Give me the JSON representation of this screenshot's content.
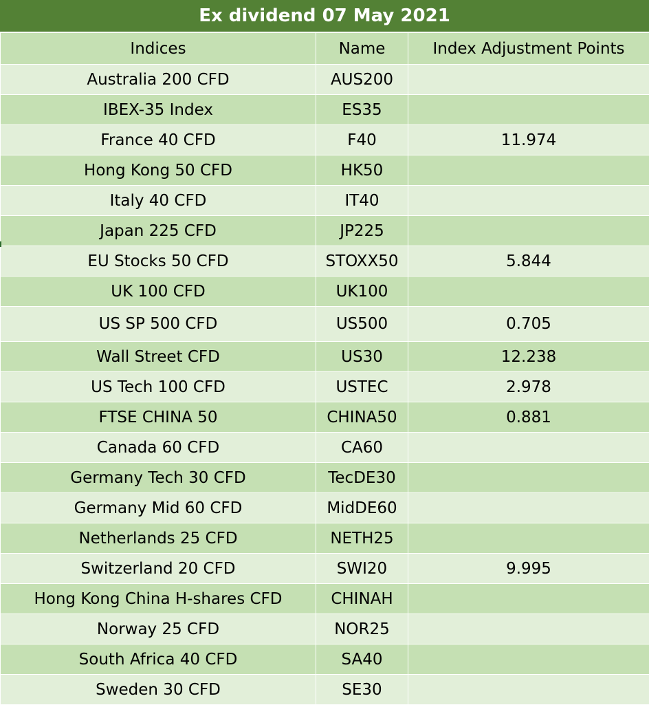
{
  "title": "Ex dividend 07 May 2021",
  "headers": {
    "indices": "Indices",
    "name": "Name",
    "points": "Index Adjustment Points"
  },
  "rows": [
    {
      "index": "Australia 200 CFD",
      "name": "AUS200",
      "points": ""
    },
    {
      "index": "IBEX-35 Index",
      "name": "ES35",
      "points": ""
    },
    {
      "index": "France 40 CFD",
      "name": "F40",
      "points": "11.974"
    },
    {
      "index": "Hong Kong 50 CFD",
      "name": "HK50",
      "points": ""
    },
    {
      "index": "Italy 40 CFD",
      "name": "IT40",
      "points": ""
    },
    {
      "index": "Japan 225 CFD",
      "name": "JP225",
      "points": ""
    },
    {
      "index": "EU Stocks 50 CFD",
      "name": "STOXX50",
      "points": "5.844"
    },
    {
      "index": "UK 100 CFD",
      "name": "UK100",
      "points": ""
    },
    {
      "index": "US SP 500 CFD",
      "name": "US500",
      "points": "0.705"
    },
    {
      "index": "Wall Street CFD",
      "name": "US30",
      "points": "12.238"
    },
    {
      "index": "US Tech 100 CFD",
      "name": "USTEC",
      "points": "2.978"
    },
    {
      "index": "FTSE CHINA 50",
      "name": "CHINA50",
      "points": "0.881"
    },
    {
      "index": "Canada 60 CFD",
      "name": "CA60",
      "points": ""
    },
    {
      "index": "Germany Tech 30 CFD",
      "name": "TecDE30",
      "points": ""
    },
    {
      "index": "Germany Mid 60 CFD",
      "name": "MidDE60",
      "points": ""
    },
    {
      "index": "Netherlands 25 CFD",
      "name": "NETH25",
      "points": ""
    },
    {
      "index": "Switzerland 20 CFD",
      "name": "SWI20",
      "points": "9.995"
    },
    {
      "index": "Hong Kong China H-shares CFD",
      "name": "CHINAH",
      "points": ""
    },
    {
      "index": "Norway 25 CFD",
      "name": "NOR25",
      "points": ""
    },
    {
      "index": "South Africa 40 CFD",
      "name": "SA40",
      "points": ""
    },
    {
      "index": "Sweden 30 CFD",
      "name": "SE30",
      "points": ""
    }
  ],
  "colors": {
    "title_bg": "#538135",
    "title_text": "#ffffff",
    "row_light": "#e2efd9",
    "row_dark": "#c5e0b3"
  }
}
